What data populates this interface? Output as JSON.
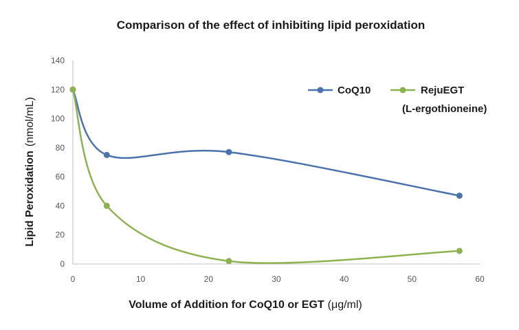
{
  "chart_data": {
    "type": "line",
    "title": "Comparison of the effect of inhibiting lipid peroxidation",
    "xlabel": "Volume of Addition for CoQ10 or EGT",
    "xlabel_unit": "(μg/ml)",
    "ylabel": "Lipid Peroxidation",
    "ylabel_unit": "(nmol/mL)",
    "xlim": [
      0,
      60
    ],
    "ylim": [
      0,
      140
    ],
    "xticks": [
      0,
      10,
      20,
      30,
      40,
      50,
      60
    ],
    "yticks": [
      0,
      20,
      40,
      60,
      80,
      100,
      120,
      140
    ],
    "grid": false,
    "legend_position": "top-right",
    "series": [
      {
        "name": "CoQ10",
        "color": "#4a72ac",
        "points": [
          [
            0,
            120
          ],
          [
            5,
            75
          ],
          [
            23,
            77
          ],
          [
            57,
            47
          ]
        ]
      },
      {
        "name": "RejuEGT",
        "name_line2": "(L-ergothioneine)",
        "color": "#8db34f",
        "points": [
          [
            0,
            120
          ],
          [
            5,
            40
          ],
          [
            23,
            2
          ],
          [
            57,
            9
          ]
        ]
      }
    ]
  }
}
